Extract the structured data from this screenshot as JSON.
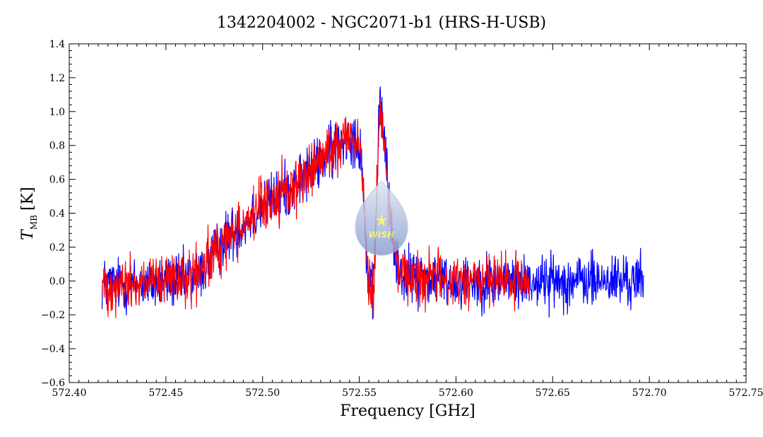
{
  "chart_data": {
    "type": "line",
    "title": "1342204002 - NGC2071-b1 (HRS-H-USB)",
    "xlabel": "Frequency [GHz]",
    "ylabel": {
      "main": "T",
      "sub": "MB",
      "unit": "[K]"
    },
    "xlim": [
      572.4,
      572.75
    ],
    "ylim": [
      -0.6,
      1.4
    ],
    "x_ticks": [
      "572.40",
      "572.45",
      "572.50",
      "572.55",
      "572.60",
      "572.65",
      "572.70",
      "572.75"
    ],
    "y_ticks": [
      "-0.6",
      "-0.4",
      "-0.2",
      "0.0",
      "0.2",
      "0.4",
      "0.6",
      "0.8",
      "1.0",
      "1.2",
      "1.4"
    ],
    "grid": false,
    "series": [
      {
        "color": "#0000ff",
        "x_range": [
          572.417,
          572.697
        ],
        "profile": [
          [
            572.417,
            -0.02
          ],
          [
            572.44,
            -0.02
          ],
          [
            572.466,
            0.02
          ],
          [
            572.48,
            0.24
          ],
          [
            572.5,
            0.44
          ],
          [
            572.52,
            0.6
          ],
          [
            572.535,
            0.76
          ],
          [
            572.545,
            0.88
          ],
          [
            572.551,
            0.78
          ],
          [
            572.553,
            0.3
          ],
          [
            572.555,
            -0.05
          ],
          [
            572.557,
            -0.08
          ],
          [
            572.558,
            0.1
          ],
          [
            572.559,
            0.55
          ],
          [
            572.5605,
            1.05
          ],
          [
            572.562,
            0.95
          ],
          [
            572.5635,
            0.8
          ],
          [
            572.565,
            0.5
          ],
          [
            572.567,
            0.25
          ],
          [
            572.57,
            0.08
          ],
          [
            572.575,
            0.03
          ],
          [
            572.6,
            0.0
          ],
          [
            572.697,
            0.0
          ]
        ],
        "noise_sigma": 0.08
      },
      {
        "color": "#ff0000",
        "x_range": [
          572.417,
          572.638
        ],
        "profile": [
          [
            572.417,
            -0.02
          ],
          [
            572.44,
            -0.02
          ],
          [
            572.466,
            0.02
          ],
          [
            572.48,
            0.24
          ],
          [
            572.5,
            0.44
          ],
          [
            572.52,
            0.6
          ],
          [
            572.535,
            0.76
          ],
          [
            572.545,
            0.88
          ],
          [
            572.551,
            0.78
          ],
          [
            572.553,
            0.3
          ],
          [
            572.555,
            -0.05
          ],
          [
            572.557,
            -0.08
          ],
          [
            572.558,
            0.1
          ],
          [
            572.559,
            0.55
          ],
          [
            572.5605,
            1.05
          ],
          [
            572.562,
            0.95
          ],
          [
            572.5635,
            0.8
          ],
          [
            572.565,
            0.5
          ],
          [
            572.567,
            0.25
          ],
          [
            572.57,
            0.08
          ],
          [
            572.575,
            0.03
          ],
          [
            572.6,
            0.0
          ],
          [
            572.638,
            0.0
          ]
        ],
        "noise_sigma": 0.08
      }
    ]
  },
  "logo": {
    "text": "WISH",
    "colors": {
      "drop_top": "#dfe6f3",
      "drop_bottom": "#8a9fd0",
      "text": "#f3f06a"
    }
  }
}
